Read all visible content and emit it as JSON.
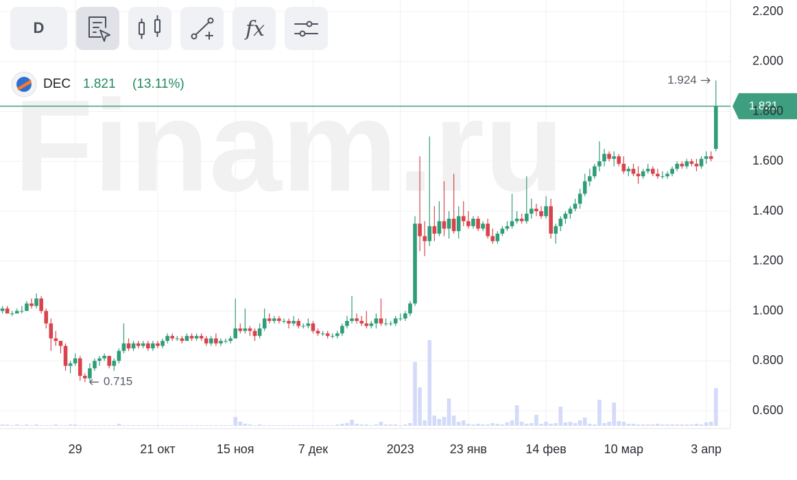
{
  "toolbar": {
    "interval": "D",
    "functions": "fx"
  },
  "watermark": "Finam.ru",
  "chart_data": {
    "type": "candlestick",
    "ticker": "DEC",
    "change": {
      "value": 13.11,
      "label": "(13.11%)"
    },
    "up_color": "#2f9d78",
    "down_color": "#d9434b",
    "volume_color": "#d3dafa",
    "last_color": "#3d9f80",
    "grid": true,
    "xlim": [
      -0.5,
      150
    ],
    "xticks": [
      {
        "value": 15,
        "label": "29"
      },
      {
        "value": 32,
        "label": "21 окт"
      },
      {
        "value": 48,
        "label": "15 ноя"
      },
      {
        "value": 64,
        "label": "7 дек"
      },
      {
        "value": 82,
        "label": "2023"
      },
      {
        "value": 96,
        "label": "23 янв"
      },
      {
        "value": 112,
        "label": "14 фев"
      },
      {
        "value": 128,
        "label": "10 мар"
      },
      {
        "value": 145,
        "label": "3 апр"
      }
    ],
    "ylim": [
      0.55,
      2.2
    ],
    "yticks": [
      {
        "value": 0.6,
        "label": "0.600"
      },
      {
        "value": 0.8,
        "label": "0.800"
      },
      {
        "value": 1.0,
        "label": "1.000"
      },
      {
        "value": 1.2,
        "label": "1.200"
      },
      {
        "value": 1.4,
        "label": "1.400"
      },
      {
        "value": 1.6,
        "label": "1.600"
      },
      {
        "value": 1.8,
        "label": "1.800"
      },
      {
        "value": 2.0,
        "label": "2.000"
      },
      {
        "value": 2.2,
        "label": "2.200"
      }
    ],
    "ohlc": [
      [
        1.0,
        1.02,
        0.99,
        1.01
      ],
      [
        1.01,
        1.02,
        0.99,
        0.99
      ],
      [
        0.99,
        1.0,
        0.98,
        0.99
      ],
      [
        0.99,
        1.01,
        0.99,
        1.0
      ],
      [
        1.0,
        1.02,
        0.99,
        1.0
      ],
      [
        1.0,
        1.04,
        1.0,
        1.03
      ],
      [
        1.03,
        1.05,
        1.01,
        1.02
      ],
      [
        1.02,
        1.07,
        1.01,
        1.05
      ],
      [
        1.05,
        1.06,
        0.99,
        1.0
      ],
      [
        1.0,
        1.01,
        0.93,
        0.95
      ],
      [
        0.95,
        0.97,
        0.84,
        0.89
      ],
      [
        0.89,
        0.92,
        0.86,
        0.88
      ],
      [
        0.88,
        0.88,
        0.83,
        0.86
      ],
      [
        0.86,
        0.87,
        0.76,
        0.78
      ],
      [
        0.78,
        0.8,
        0.75,
        0.79
      ],
      [
        0.79,
        0.83,
        0.78,
        0.81
      ],
      [
        0.81,
        0.82,
        0.72,
        0.74
      ],
      [
        0.74,
        0.75,
        0.715,
        0.73
      ],
      [
        0.73,
        0.79,
        0.72,
        0.77
      ],
      [
        0.77,
        0.81,
        0.76,
        0.8
      ],
      [
        0.8,
        0.82,
        0.78,
        0.81
      ],
      [
        0.81,
        0.83,
        0.8,
        0.82
      ],
      [
        0.82,
        0.82,
        0.77,
        0.78
      ],
      [
        0.78,
        0.81,
        0.76,
        0.8
      ],
      [
        0.8,
        0.85,
        0.79,
        0.84
      ],
      [
        0.84,
        0.95,
        0.83,
        0.87
      ],
      [
        0.87,
        0.89,
        0.84,
        0.85
      ],
      [
        0.85,
        0.88,
        0.84,
        0.87
      ],
      [
        0.87,
        0.88,
        0.85,
        0.86
      ],
      [
        0.86,
        0.88,
        0.85,
        0.87
      ],
      [
        0.87,
        0.88,
        0.84,
        0.85
      ],
      [
        0.85,
        0.88,
        0.84,
        0.87
      ],
      [
        0.87,
        0.88,
        0.85,
        0.86
      ],
      [
        0.86,
        0.89,
        0.85,
        0.88
      ],
      [
        0.88,
        0.91,
        0.87,
        0.9
      ],
      [
        0.9,
        0.91,
        0.88,
        0.89
      ],
      [
        0.89,
        0.9,
        0.88,
        0.89
      ],
      [
        0.89,
        0.9,
        0.87,
        0.88
      ],
      [
        0.88,
        0.91,
        0.88,
        0.9
      ],
      [
        0.9,
        0.91,
        0.88,
        0.89
      ],
      [
        0.89,
        0.91,
        0.88,
        0.9
      ],
      [
        0.9,
        0.91,
        0.88,
        0.89
      ],
      [
        0.89,
        0.9,
        0.86,
        0.87
      ],
      [
        0.87,
        0.9,
        0.86,
        0.89
      ],
      [
        0.89,
        0.91,
        0.86,
        0.87
      ],
      [
        0.87,
        0.89,
        0.86,
        0.88
      ],
      [
        0.88,
        0.89,
        0.87,
        0.88
      ],
      [
        0.88,
        0.9,
        0.87,
        0.89
      ],
      [
        0.89,
        1.05,
        0.89,
        0.93
      ],
      [
        0.93,
        0.95,
        0.91,
        0.92
      ],
      [
        0.92,
        1.01,
        0.91,
        0.93
      ],
      [
        0.93,
        0.94,
        0.9,
        0.92
      ],
      [
        0.92,
        0.93,
        0.88,
        0.9
      ],
      [
        0.9,
        0.95,
        0.89,
        0.93
      ],
      [
        0.93,
        1.01,
        0.92,
        0.97
      ],
      [
        0.97,
        0.99,
        0.95,
        0.96
      ],
      [
        0.96,
        0.98,
        0.95,
        0.97
      ],
      [
        0.97,
        0.98,
        0.95,
        0.96
      ],
      [
        0.96,
        0.97,
        0.95,
        0.96
      ],
      [
        0.96,
        0.97,
        0.93,
        0.95
      ],
      [
        0.95,
        0.98,
        0.94,
        0.96
      ],
      [
        0.96,
        0.97,
        0.93,
        0.94
      ],
      [
        0.94,
        0.95,
        0.93,
        0.94
      ],
      [
        0.94,
        0.97,
        0.93,
        0.95
      ],
      [
        0.95,
        0.96,
        0.91,
        0.92
      ],
      [
        0.92,
        0.93,
        0.9,
        0.91
      ],
      [
        0.91,
        0.92,
        0.9,
        0.91
      ],
      [
        0.91,
        0.92,
        0.89,
        0.9
      ],
      [
        0.9,
        0.91,
        0.89,
        0.9
      ],
      [
        0.9,
        0.92,
        0.89,
        0.91
      ],
      [
        0.91,
        0.95,
        0.9,
        0.94
      ],
      [
        0.94,
        0.98,
        0.93,
        0.96
      ],
      [
        0.96,
        1.06,
        0.95,
        0.97
      ],
      [
        0.97,
        0.99,
        0.95,
        0.96
      ],
      [
        0.96,
        0.98,
        0.94,
        0.95
      ],
      [
        0.95,
        1.0,
        0.93,
        0.94
      ],
      [
        0.94,
        0.96,
        0.93,
        0.95
      ],
      [
        0.95,
        0.99,
        0.93,
        0.97
      ],
      [
        0.97,
        1.05,
        0.94,
        0.95
      ],
      [
        0.95,
        0.97,
        0.94,
        0.95
      ],
      [
        0.95,
        0.96,
        0.94,
        0.95
      ],
      [
        0.95,
        0.98,
        0.94,
        0.97
      ],
      [
        0.97,
        0.99,
        0.96,
        0.97
      ],
      [
        0.97,
        1.0,
        0.96,
        0.99
      ],
      [
        0.99,
        1.04,
        0.98,
        1.03
      ],
      [
        1.03,
        1.38,
        1.02,
        1.35
      ],
      [
        1.35,
        1.62,
        1.24,
        1.3
      ],
      [
        1.3,
        1.36,
        1.22,
        1.28
      ],
      [
        1.28,
        1.7,
        1.26,
        1.34
      ],
      [
        1.34,
        1.42,
        1.28,
        1.31
      ],
      [
        1.31,
        1.44,
        1.3,
        1.36
      ],
      [
        1.36,
        1.52,
        1.3,
        1.33
      ],
      [
        1.33,
        1.4,
        1.29,
        1.37
      ],
      [
        1.37,
        1.55,
        1.31,
        1.32
      ],
      [
        1.32,
        1.42,
        1.29,
        1.38
      ],
      [
        1.38,
        1.44,
        1.34,
        1.36
      ],
      [
        1.36,
        1.4,
        1.33,
        1.34
      ],
      [
        1.34,
        1.38,
        1.33,
        1.37
      ],
      [
        1.37,
        1.38,
        1.32,
        1.33
      ],
      [
        1.33,
        1.36,
        1.32,
        1.35
      ],
      [
        1.35,
        1.37,
        1.29,
        1.3
      ],
      [
        1.3,
        1.33,
        1.27,
        1.28
      ],
      [
        1.28,
        1.32,
        1.27,
        1.31
      ],
      [
        1.31,
        1.34,
        1.3,
        1.33
      ],
      [
        1.33,
        1.36,
        1.32,
        1.34
      ],
      [
        1.34,
        1.47,
        1.33,
        1.36
      ],
      [
        1.36,
        1.4,
        1.35,
        1.37
      ],
      [
        1.37,
        1.39,
        1.35,
        1.36
      ],
      [
        1.36,
        1.54,
        1.35,
        1.39
      ],
      [
        1.39,
        1.45,
        1.37,
        1.41
      ],
      [
        1.41,
        1.43,
        1.38,
        1.4
      ],
      [
        1.4,
        1.42,
        1.37,
        1.38
      ],
      [
        1.38,
        1.46,
        1.37,
        1.42
      ],
      [
        1.42,
        1.45,
        1.29,
        1.31
      ],
      [
        1.31,
        1.35,
        1.27,
        1.34
      ],
      [
        1.34,
        1.38,
        1.32,
        1.37
      ],
      [
        1.37,
        1.4,
        1.35,
        1.39
      ],
      [
        1.39,
        1.42,
        1.37,
        1.41
      ],
      [
        1.41,
        1.45,
        1.4,
        1.43
      ],
      [
        1.43,
        1.49,
        1.41,
        1.47
      ],
      [
        1.47,
        1.55,
        1.46,
        1.52
      ],
      [
        1.52,
        1.57,
        1.5,
        1.54
      ],
      [
        1.54,
        1.59,
        1.53,
        1.58
      ],
      [
        1.58,
        1.68,
        1.56,
        1.6
      ],
      [
        1.6,
        1.65,
        1.58,
        1.63
      ],
      [
        1.63,
        1.64,
        1.6,
        1.61
      ],
      [
        1.61,
        1.64,
        1.58,
        1.62
      ],
      [
        1.62,
        1.63,
        1.58,
        1.59
      ],
      [
        1.59,
        1.62,
        1.55,
        1.56
      ],
      [
        1.56,
        1.58,
        1.54,
        1.57
      ],
      [
        1.57,
        1.59,
        1.54,
        1.55
      ],
      [
        1.55,
        1.58,
        1.51,
        1.54
      ],
      [
        1.54,
        1.57,
        1.53,
        1.56
      ],
      [
        1.56,
        1.59,
        1.55,
        1.57
      ],
      [
        1.57,
        1.58,
        1.54,
        1.55
      ],
      [
        1.55,
        1.57,
        1.53,
        1.54
      ],
      [
        1.54,
        1.56,
        1.53,
        1.54
      ],
      [
        1.54,
        1.56,
        1.53,
        1.55
      ],
      [
        1.55,
        1.58,
        1.54,
        1.57
      ],
      [
        1.57,
        1.6,
        1.56,
        1.59
      ],
      [
        1.59,
        1.6,
        1.57,
        1.58
      ],
      [
        1.58,
        1.61,
        1.57,
        1.6
      ],
      [
        1.6,
        1.61,
        1.58,
        1.59
      ],
      [
        1.59,
        1.61,
        1.56,
        1.58
      ],
      [
        1.58,
        1.62,
        1.57,
        1.61
      ],
      [
        1.61,
        1.64,
        1.59,
        1.62
      ],
      [
        1.62,
        1.64,
        1.6,
        1.61
      ],
      [
        1.65,
        1.924,
        1.64,
        1.821
      ]
    ],
    "volume": [
      2,
      2,
      1,
      2,
      1,
      2,
      1,
      2,
      1,
      1,
      1,
      2,
      1,
      1,
      2,
      2,
      1,
      1,
      1,
      1,
      1,
      1,
      1,
      1,
      3,
      1,
      1,
      1,
      1,
      1,
      1,
      1,
      1,
      1,
      1,
      1,
      1,
      1,
      1,
      1,
      1,
      1,
      1,
      1,
      1,
      1,
      1,
      1,
      13,
      6,
      3,
      2,
      1,
      2,
      1,
      1,
      1,
      1,
      1,
      1,
      1,
      1,
      1,
      1,
      1,
      1,
      1,
      1,
      1,
      2,
      3,
      4,
      9,
      3,
      2,
      2,
      1,
      2,
      6,
      2,
      2,
      2,
      1,
      2,
      4,
      93,
      56,
      8,
      125,
      15,
      10,
      13,
      40,
      15,
      6,
      8,
      3,
      2,
      3,
      2,
      2,
      4,
      3,
      2,
      5,
      8,
      30,
      6,
      3,
      4,
      16,
      3,
      6,
      3,
      4,
      28,
      5,
      6,
      4,
      8,
      12,
      3,
      2,
      38,
      4,
      6,
      34,
      7,
      6,
      3,
      3,
      2,
      2,
      2,
      2,
      3,
      2,
      2,
      2,
      2,
      2,
      2,
      2,
      3,
      2,
      5,
      6,
      55
    ]
  }
}
